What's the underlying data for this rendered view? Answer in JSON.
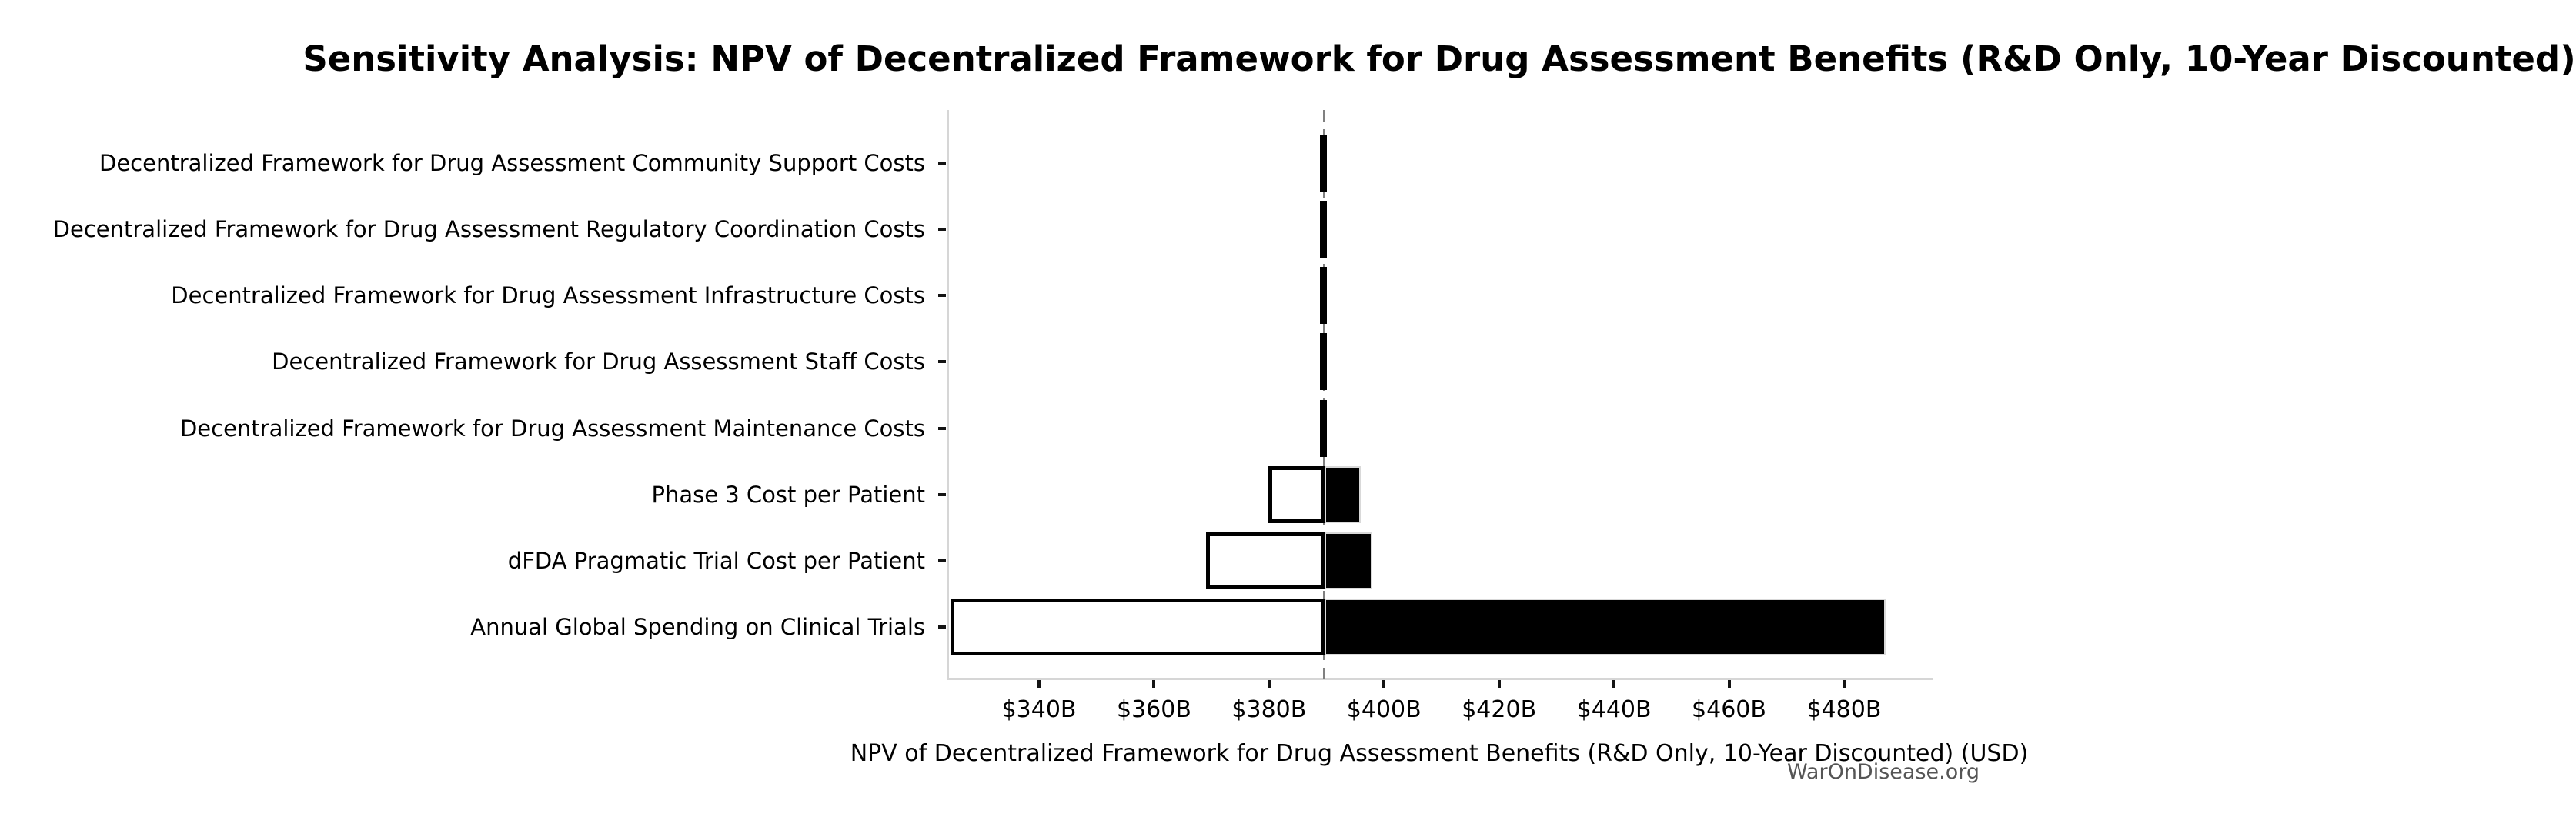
{
  "title": "Sensitivity Analysis: NPV of Decentralized Framework for Drug Assessment Benefits (R&D Only, 10-Year Discounted)",
  "watermark": "WarOnDisease.org",
  "colors": {
    "low_segment_fill": "#ffffff",
    "high_segment_fill": "#000000",
    "low_segment_border": "#000000",
    "baseline_dash": "#808080",
    "spine": "#d6d6d6",
    "watermark_text": "#555555"
  },
  "chart_data": {
    "type": "bar",
    "subtype": "tornado-sensitivity",
    "orientation": "horizontal",
    "title": "Sensitivity Analysis: NPV of Decentralized Framework for Drug Assessment Benefits (R&D Only, 10-Year Discounted)",
    "xlabel": "NPV of Decentralized Framework for Drug Assessment Benefits (R&D Only, 10-Year Discounted) (USD)",
    "ylabel": "",
    "unit": "USD billions",
    "xlim": [
      324.2,
      495.0
    ],
    "base_value": 389.6,
    "grid": false,
    "legend": null,
    "x_ticks": [
      {
        "value": 340,
        "label": "$340B"
      },
      {
        "value": 360,
        "label": "$360B"
      },
      {
        "value": 380,
        "label": "$380B"
      },
      {
        "value": 400,
        "label": "$400B"
      },
      {
        "value": 420,
        "label": "$420B"
      },
      {
        "value": 440,
        "label": "$440B"
      },
      {
        "value": 460,
        "label": "$460B"
      },
      {
        "value": 480,
        "label": "$480B"
      }
    ],
    "categories": [
      "Decentralized Framework for Drug Assessment Community Support Costs",
      "Decentralized Framework for Drug Assessment Regulatory Coordination Costs",
      "Decentralized Framework for Drug Assessment Infrastructure Costs",
      "Decentralized Framework for Drug Assessment Staff Costs",
      "Decentralized Framework for Drug Assessment Maintenance Costs",
      "Phase 3 Cost per Patient",
      "dFDA Pragmatic Trial Cost per Patient",
      "Annual Global Spending on Clinical Trials"
    ],
    "series": [
      {
        "name": "low_estimate_npv_billions",
        "values": [
          388.9,
          388.9,
          388.9,
          388.9,
          388.9,
          379.9,
          369.0,
          324.6
        ]
      },
      {
        "name": "high_estimate_npv_billions",
        "values": [
          390.1,
          390.1,
          390.1,
          390.1,
          390.1,
          396.0,
          398.0,
          487.3
        ]
      }
    ]
  }
}
